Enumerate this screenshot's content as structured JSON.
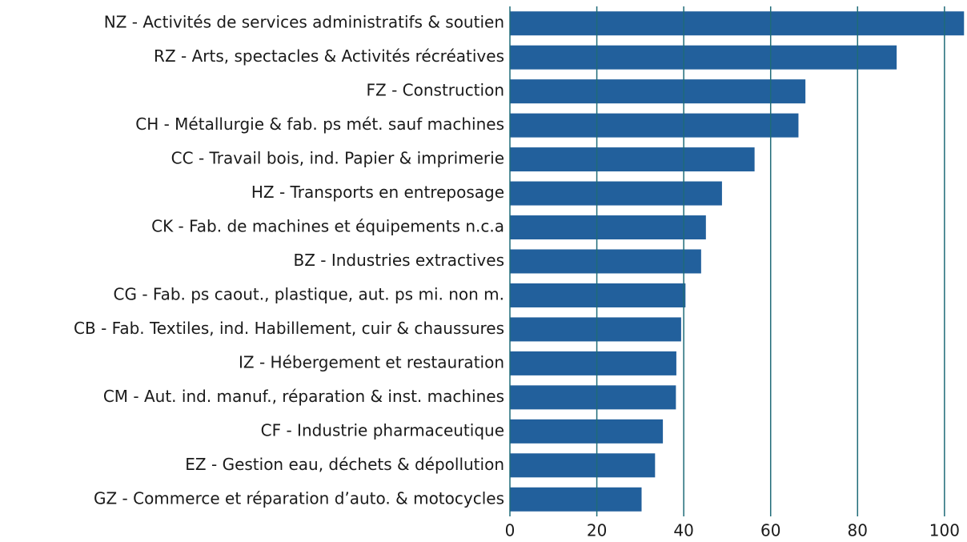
{
  "chart_data": {
    "type": "hbar",
    "categories": [
      "NZ - Activités de services administratifs & soutien",
      "RZ - Arts, spectacles & Activités récréatives",
      "FZ - Construction",
      "CH - Métallurgie & fab. ps mét. sauf machines",
      "CC - Travail bois, ind. Papier & imprimerie",
      "HZ - Transports en entreposage",
      "CK - Fab. de machines et équipements n.c.a",
      "BZ - Industries extractives",
      "CG - Fab. ps caout., plastique, aut. ps mi. non m.",
      "CB - Fab. Textiles, ind. Habillement, cuir & chaussures",
      "IZ - Hébergement et restauration",
      "CM - Aut. ind. manuf., réparation & inst. machines",
      "CF - Industrie pharmaceutique",
      "EZ - Gestion eau, déchets & dépollution",
      "GZ - Commerce et réparation d’auto. & motocycles"
    ],
    "values": [
      104.5,
      89,
      68,
      66.4,
      56.3,
      48.8,
      45.1,
      44,
      40.4,
      39.4,
      38.3,
      38.2,
      35.2,
      33.4,
      30.3
    ],
    "color": "#22609c",
    "grid_color": "#1f6b78",
    "xlim": [
      0,
      105
    ],
    "xticks": [
      0,
      20,
      40,
      60,
      80,
      100
    ],
    "grid": true
  }
}
